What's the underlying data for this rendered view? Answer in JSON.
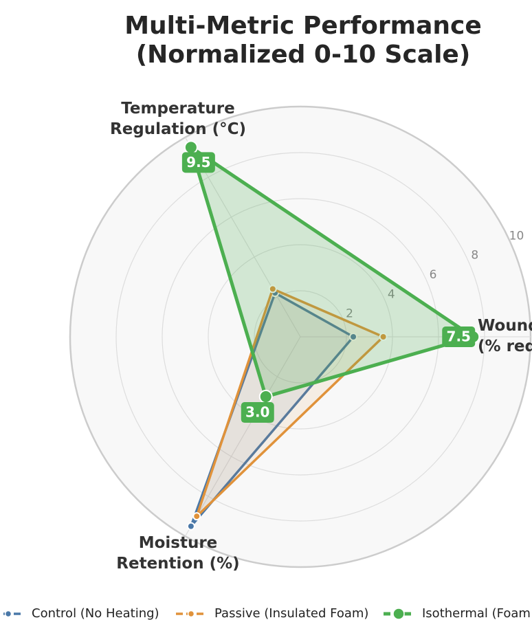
{
  "chart_data": {
    "type": "radar",
    "title": "Multi-Metric Performance\n(Normalized 0-10 Scale)",
    "categories": [
      "Temperature\nRegulation (°C)",
      "Wound Healing\n(% reduction)",
      "Moisture\nRetention (%)"
    ],
    "ylim": [
      0,
      10
    ],
    "yticks": [
      2,
      4,
      6,
      8,
      10
    ],
    "grid": true,
    "legend": "bottom",
    "series": [
      {
        "name": "Control (No Heating)",
        "color": "#4a78a8",
        "values": [
          2.2,
          2.3,
          9.5
        ]
      },
      {
        "name": "Passive (Insulated Foam)",
        "color": "#e0923a",
        "values": [
          2.4,
          3.6,
          9.0
        ]
      },
      {
        "name": "Isothermal (Foam + Heating)",
        "color": "#4caf50",
        "values": [
          9.5,
          7.5,
          3.0
        ],
        "value_labels": [
          "9.5",
          "7.5",
          "3.0"
        ]
      }
    ]
  }
}
